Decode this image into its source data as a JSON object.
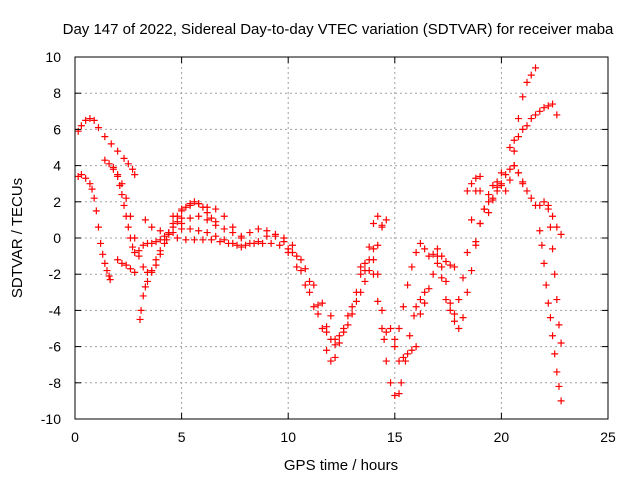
{
  "chart_data": {
    "type": "scatter",
    "title": "Day 147 of 2022, Sidereal Day-to-day VTEC variation (SDTVAR) for receiver maba",
    "xlabel": "GPS time / hours",
    "ylabel": "SDTVAR / TECUs",
    "xlim": [
      0,
      25
    ],
    "ylim": [
      -10,
      10
    ],
    "xticks": [
      0,
      5,
      10,
      15,
      20,
      25
    ],
    "yticks": [
      -10,
      -8,
      -6,
      -4,
      -2,
      0,
      2,
      4,
      6,
      8,
      10
    ],
    "grid": true,
    "marker": "plus",
    "color": "#ff0000",
    "series": [
      {
        "x": [
          0.15,
          0.3,
          0.5,
          0.7,
          0.9,
          1.1,
          1.4,
          1.7,
          2.0,
          2.3,
          2.5,
          2.7,
          2.8
        ],
        "y": [
          5.9,
          6.2,
          6.5,
          6.6,
          6.5,
          6.1,
          5.6,
          5.2,
          4.8,
          4.4,
          4.1,
          3.8,
          3.5
        ]
      },
      {
        "x": [
          0.15,
          0.3,
          0.5,
          0.7,
          0.8,
          0.9,
          1.0,
          1.1,
          1.2,
          1.3,
          1.4,
          1.5,
          1.6,
          1.65
        ],
        "y": [
          3.4,
          3.5,
          3.3,
          3.0,
          2.7,
          2.2,
          1.5,
          0.6,
          -0.3,
          -0.9,
          -1.4,
          -1.8,
          -2.1,
          -2.3
        ]
      },
      {
        "x": [
          1.4,
          1.6,
          1.8,
          2.0,
          2.1,
          2.2,
          2.3,
          2.4,
          2.5,
          2.6,
          2.7,
          2.8,
          3.0,
          3.2,
          3.4,
          3.6,
          3.8,
          4.0,
          4.2,
          4.4,
          4.6,
          4.8,
          5.0
        ],
        "y": [
          4.3,
          4.1,
          3.8,
          3.4,
          2.9,
          2.4,
          1.8,
          1.2,
          0.6,
          0.0,
          -0.5,
          -0.8,
          -0.7,
          -0.4,
          -0.3,
          -0.3,
          -0.2,
          -0.1,
          0.1,
          0.3,
          0.6,
          0.9,
          1.1
        ]
      },
      {
        "x": [
          1.8,
          2.0,
          2.2,
          2.4,
          2.6,
          2.8,
          3.0,
          3.2,
          3.4,
          3.6,
          3.8,
          4.0,
          4.2,
          4.4,
          4.6,
          4.8,
          5.0,
          5.2,
          5.4,
          5.6,
          5.8,
          6.0,
          6.2,
          6.4,
          6.6
        ],
        "y": [
          3.9,
          3.5,
          3.0,
          2.2,
          1.2,
          0.0,
          -1.0,
          -1.6,
          -1.9,
          -1.9,
          -1.5,
          -0.9,
          -0.3,
          0.3,
          0.8,
          1.2,
          1.5,
          1.7,
          1.9,
          2.0,
          1.9,
          1.7,
          1.4,
          1.1,
          0.9
        ]
      },
      {
        "x": [
          2.0,
          2.2,
          2.4,
          2.6,
          2.8
        ],
        "y": [
          -1.2,
          -1.4,
          -1.5,
          -1.7,
          -1.9
        ]
      },
      {
        "x": [
          3.05,
          3.1,
          3.2,
          3.3,
          3.4,
          3.6,
          3.8,
          4.0,
          4.3,
          4.6,
          5.0,
          5.4,
          5.8,
          6.2,
          6.6,
          7.0,
          7.4,
          7.8
        ],
        "y": [
          -4.5,
          -4.0,
          -3.2,
          -2.7,
          -2.4,
          -1.8,
          -1.2,
          -0.7,
          -0.1,
          0.3,
          0.5,
          0.5,
          0.4,
          0.3,
          0.1,
          -0.1,
          -0.3,
          -0.5
        ]
      },
      {
        "x": [
          3.3,
          3.6,
          4.0,
          4.4,
          4.8,
          5.2,
          5.6,
          6.0,
          6.4,
          6.8,
          7.2,
          7.6,
          8.0,
          8.4,
          8.8,
          9.2,
          9.6,
          10.0,
          10.4,
          10.8,
          11.2,
          11.6,
          12.0
        ],
        "y": [
          1.0,
          0.6,
          0.4,
          0.2,
          0.0,
          -0.1,
          -0.1,
          -0.1,
          -0.1,
          -0.2,
          -0.3,
          -0.4,
          -0.4,
          -0.3,
          -0.3,
          -0.3,
          -0.4,
          -0.6,
          -1.0,
          -1.7,
          -2.6,
          -3.6,
          -4.3
        ]
      },
      {
        "x": [
          4.6,
          5.0,
          5.4,
          5.8,
          6.2,
          6.6,
          7.0,
          7.4,
          7.8,
          8.2,
          8.6,
          9.0,
          9.4,
          9.8,
          10.2,
          10.6,
          11.0,
          11.4,
          11.8,
          12.2
        ],
        "y": [
          1.2,
          1.6,
          1.8,
          1.9,
          1.7,
          1.6,
          1.2,
          0.6,
          0.1,
          0.3,
          0.5,
          0.4,
          0.1,
          -0.2,
          -0.8,
          -1.8,
          -3.0,
          -4.2,
          -5.2,
          -5.6
        ]
      },
      {
        "x": [
          5.0,
          5.4,
          5.8,
          6.2,
          6.6,
          7.0,
          7.4,
          7.8,
          8.2,
          8.6,
          9.0,
          9.4,
          9.8,
          10.2,
          10.6,
          11.0,
          11.4,
          11.8,
          12.0,
          12.2
        ],
        "y": [
          0.8,
          1.1,
          1.2,
          1.0,
          0.7,
          0.5,
          0.3,
          0.0,
          -0.3,
          -0.2,
          0.1,
          0.2,
          0.0,
          -0.4,
          -1.2,
          -2.4,
          -3.7,
          -4.9,
          -5.6,
          -5.9
        ]
      },
      {
        "x": [
          10.0,
          10.4,
          10.8,
          11.2,
          11.6,
          11.8,
          12.0,
          12.2,
          12.4,
          12.6,
          12.8,
          13.0,
          13.2,
          13.4,
          13.6,
          13.8,
          14.0,
          14.2,
          14.4
        ],
        "y": [
          -0.8,
          -1.6,
          -2.6,
          -3.8,
          -5.0,
          -6.2,
          -6.8,
          -6.6,
          -5.8,
          -5.0,
          -4.3,
          -3.8,
          -3.0,
          -2.0,
          -1.4,
          -0.5,
          0.8,
          1.2,
          0.7
        ]
      },
      {
        "x": [
          12.4,
          12.6,
          12.8,
          13.0,
          13.2,
          13.4,
          13.6,
          13.8,
          14.0,
          14.2,
          14.4,
          14.6
        ],
        "y": [
          -5.4,
          -5.2,
          -4.8,
          -4.2,
          -3.5,
          -3.0,
          -2.4,
          -1.8,
          -1.2,
          -0.4,
          0.6,
          1.0
        ]
      },
      {
        "x": [
          13.4,
          13.6,
          13.8,
          14.0,
          14.2,
          14.4,
          14.6,
          14.8,
          15.0,
          15.2,
          15.4,
          15.6,
          15.8,
          16.0
        ],
        "y": [
          -1.6,
          -1.8,
          -1.2,
          -2.0,
          -3.5,
          -5.0,
          -5.2,
          -5.0,
          -6.0,
          -6.8,
          -6.6,
          -6.4,
          -6.2,
          -6.0
        ]
      },
      {
        "x": [
          14.0,
          14.2,
          14.4,
          14.5,
          14.6,
          14.8,
          15.0,
          15.2,
          15.3,
          15.5,
          15.7,
          15.9,
          16.0,
          16.2,
          16.4
        ],
        "y": [
          -0.6,
          -2.0,
          -4.0,
          -5.6,
          -6.8,
          -8.0,
          -8.7,
          -8.6,
          -8.0,
          -6.8,
          -5.4,
          -4.3,
          -3.8,
          -3.4,
          -3.0
        ]
      },
      {
        "x": [
          15.0,
          15.2,
          15.4,
          15.6,
          15.8,
          16.0,
          16.2,
          16.4,
          16.6,
          16.8,
          17.0,
          17.2,
          17.4,
          17.6,
          17.8
        ],
        "y": [
          -5.6,
          -5.0,
          -3.8,
          -2.6,
          -1.6,
          -0.8,
          -0.3,
          -0.6,
          -1.0,
          -0.9,
          -0.6,
          -1.0,
          -1.3,
          -1.5,
          -1.6
        ]
      },
      {
        "x": [
          16.2,
          16.4,
          16.6,
          16.8,
          17.0,
          17.2,
          17.4,
          17.6,
          17.8,
          18.0,
          18.2,
          18.4,
          18.6,
          18.8,
          19.0
        ],
        "y": [
          -4.2,
          -3.6,
          -2.8,
          -2.0,
          -1.4,
          -1.6,
          -2.4,
          -3.6,
          -4.2,
          -3.4,
          -2.2,
          -0.8,
          1.0,
          2.6,
          3.4
        ]
      },
      {
        "x": [
          17.0,
          17.2,
          17.4,
          17.6,
          17.8,
          18.0,
          18.2,
          18.4,
          18.6,
          18.8,
          19.0,
          19.2,
          19.4,
          19.6,
          19.8,
          20.0
        ],
        "y": [
          -1.0,
          -2.2,
          -3.4,
          -4.0,
          -4.6,
          -5.0,
          -4.4,
          -3.0,
          -1.8,
          -0.4,
          0.8,
          1.6,
          2.0,
          2.2,
          2.8,
          3.6
        ]
      },
      {
        "x": [
          18.4,
          18.6,
          18.8,
          19.0,
          19.2,
          19.4,
          19.6,
          19.8,
          20.0,
          20.2,
          20.4,
          20.6,
          20.8,
          21.0
        ],
        "y": [
          2.6,
          3.0,
          3.3,
          2.6,
          1.6,
          1.4,
          2.1,
          2.6,
          3.0,
          3.5,
          3.8,
          4.0,
          3.6,
          3.1
        ]
      },
      {
        "x": [
          18.8,
          19.0,
          19.2,
          19.4,
          19.6,
          19.8,
          20.0,
          20.2,
          20.4,
          20.6,
          20.8,
          21.0,
          21.2,
          21.4,
          21.6
        ],
        "y": [
          -0.2,
          0.8,
          1.6,
          2.4,
          2.9,
          3.1,
          2.9,
          2.6,
          3.2,
          4.8,
          6.6,
          7.8,
          8.6,
          9.0,
          9.4
        ]
      },
      {
        "x": [
          20.4,
          20.6,
          20.8,
          21.0,
          21.2,
          21.4,
          21.6,
          21.8,
          22.0,
          22.2,
          22.4,
          22.6
        ],
        "y": [
          5.0,
          5.4,
          5.6,
          6.0,
          6.2,
          6.6,
          6.8,
          7.0,
          7.2,
          7.3,
          7.4,
          6.8
        ]
      },
      {
        "x": [
          20.6,
          20.8,
          21.0,
          21.2,
          21.4,
          21.6,
          21.8,
          22.0,
          22.2,
          22.4,
          22.6,
          22.8
        ],
        "y": [
          4.0,
          3.6,
          3.0,
          2.6,
          2.2,
          1.8,
          1.8,
          2.0,
          1.8,
          1.2,
          0.6,
          0.2
        ]
      },
      {
        "x": [
          21.8,
          21.9,
          22.0,
          22.1,
          22.2,
          22.3,
          22.4,
          22.5,
          22.6,
          22.7,
          22.8
        ],
        "y": [
          0.4,
          -0.4,
          -1.4,
          -2.6,
          -3.6,
          -4.4,
          -5.4,
          -6.4,
          -7.4,
          -8.2,
          -9.0
        ]
      },
      {
        "x": [
          22.2,
          22.3,
          22.4,
          22.5,
          22.6,
          22.7,
          22.8
        ],
        "y": [
          1.6,
          0.6,
          -0.6,
          -2.0,
          -3.4,
          -4.8,
          -5.8
        ]
      }
    ]
  }
}
